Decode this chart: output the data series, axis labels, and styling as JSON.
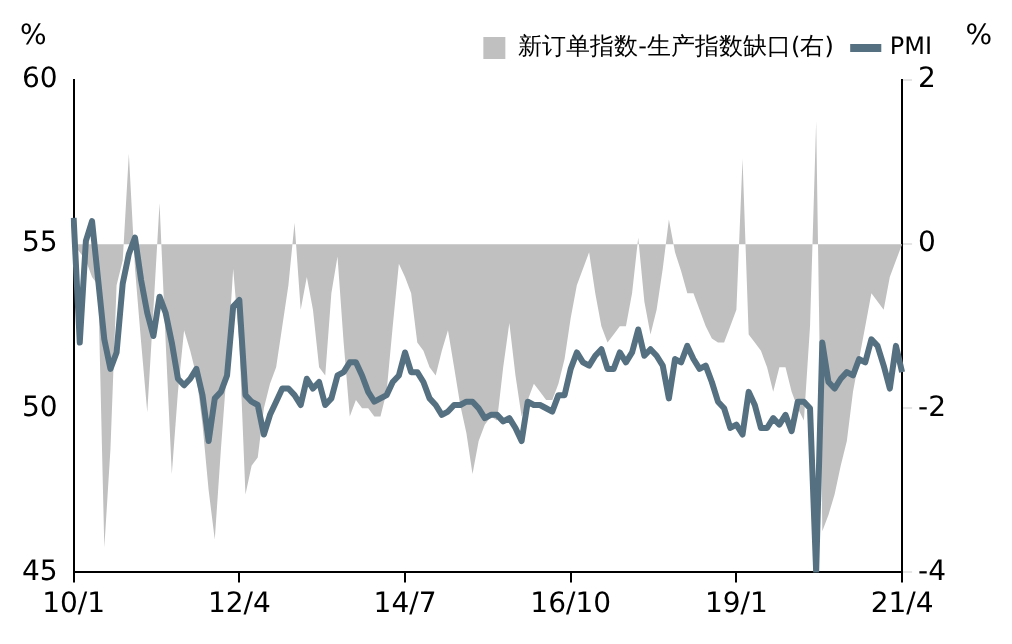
{
  "chart_data": {
    "type": "line",
    "ylabel": "%",
    "y2label": "%",
    "legend": "top",
    "categories": [
      "10/1",
      null,
      null,
      null,
      null,
      null,
      null,
      null,
      null,
      null,
      null,
      null,
      null,
      null,
      null,
      null,
      null,
      null,
      null,
      null,
      null,
      null,
      null,
      null,
      null,
      null,
      null,
      "12/4",
      null,
      null,
      null,
      null,
      null,
      null,
      null,
      null,
      null,
      null,
      null,
      null,
      null,
      null,
      null,
      null,
      null,
      null,
      null,
      null,
      null,
      null,
      null,
      null,
      null,
      null,
      "14/7",
      null,
      null,
      null,
      null,
      null,
      null,
      null,
      null,
      null,
      null,
      null,
      null,
      null,
      null,
      null,
      null,
      null,
      null,
      null,
      null,
      null,
      null,
      null,
      null,
      null,
      null,
      "16/10",
      null,
      null,
      null,
      null,
      null,
      null,
      null,
      null,
      null,
      null,
      null,
      null,
      null,
      null,
      null,
      null,
      null,
      null,
      null,
      null,
      null,
      null,
      null,
      null,
      null,
      null,
      "19/1",
      null,
      null,
      null,
      null,
      null,
      null,
      null,
      null,
      null,
      null,
      null,
      null,
      null,
      null,
      null,
      null,
      null,
      null,
      null,
      null,
      null,
      null,
      null,
      null,
      null,
      null,
      "21/4"
    ],
    "series": [
      {
        "name": "新订单指数-生产指数缺口(右)",
        "type": "area",
        "axis": "y2",
        "color": "#c0c0c0",
        "values": [
          0,
          -0.1,
          -0.2,
          -0.4,
          -0.5,
          -3.7,
          -2.5,
          -0.5,
          -0.2,
          1.1,
          -0.3,
          -1.2,
          -2.05,
          -0.8,
          0.5,
          -1.2,
          -2.8,
          -1.8,
          -1.05,
          -1.3,
          -1.6,
          -2.2,
          -3.0,
          -3.6,
          -2.5,
          -1.5,
          -0.3,
          -1.2,
          -3.05,
          -2.7,
          -2.6,
          -2.0,
          -1.7,
          -1.5,
          -1.0,
          -0.5,
          0.26,
          -0.8,
          -0.4,
          -0.8,
          -1.5,
          -1.6,
          -0.6,
          -0.15,
          -1.2,
          -2.1,
          -1.9,
          -2.0,
          -2.0,
          -2.1,
          -2.1,
          -1.8,
          -1.0,
          -0.24,
          -0.4,
          -0.6,
          -1.2,
          -1.3,
          -1.5,
          -1.6,
          -1.3,
          -1.05,
          -1.5,
          -1.96,
          -2.3,
          -2.8,
          -2.4,
          -2.2,
          -2.1,
          -2.15,
          -1.5,
          -0.96,
          -1.6,
          -2.1,
          -1.9,
          -1.7,
          -1.8,
          -1.9,
          -1.9,
          -1.7,
          -1.4,
          -0.9,
          -0.5,
          -0.3,
          -0.1,
          -0.6,
          -1.0,
          -1.2,
          -1.1,
          -1.0,
          -1.0,
          -0.6,
          0.08,
          -0.7,
          -1.1,
          -0.8,
          -0.3,
          0.3,
          -0.1,
          -0.33,
          -0.6,
          -0.6,
          -0.8,
          -1.0,
          -1.15,
          -1.2,
          -1.2,
          -1.0,
          -0.8,
          1.04,
          -1.1,
          -1.2,
          -1.3,
          -1.5,
          -1.8,
          -1.5,
          -1.5,
          -1.8,
          -2.0,
          -2.15,
          -1.0,
          1.5,
          -3.5,
          -3.3,
          -3.05,
          -2.7,
          -2.4,
          -1.8,
          -1.4,
          -1.0,
          -0.6,
          -0.7,
          -0.8,
          -0.4,
          -0.2,
          0
        ]
      },
      {
        "name": "PMI",
        "type": "line",
        "axis": "y",
        "color": "#557080",
        "values": [
          55.8,
          52.0,
          55.1,
          55.7,
          53.9,
          52.1,
          51.2,
          51.7,
          53.8,
          54.7,
          55.2,
          53.9,
          52.9,
          52.2,
          53.4,
          52.9,
          52.0,
          50.9,
          50.7,
          50.9,
          51.2,
          50.4,
          49.0,
          50.3,
          50.5,
          51.0,
          53.1,
          53.3,
          50.4,
          50.2,
          50.1,
          49.2,
          49.8,
          50.2,
          50.6,
          50.6,
          50.4,
          50.1,
          50.9,
          50.6,
          50.8,
          50.1,
          50.3,
          51.0,
          51.1,
          51.4,
          51.4,
          51.0,
          50.5,
          50.2,
          50.3,
          50.4,
          50.8,
          51.0,
          51.7,
          51.1,
          51.1,
          50.8,
          50.3,
          50.1,
          49.8,
          49.9,
          50.1,
          50.1,
          50.2,
          50.2,
          50.0,
          49.7,
          49.8,
          49.8,
          49.6,
          49.7,
          49.4,
          49.0,
          50.2,
          50.1,
          50.1,
          50.0,
          49.9,
          50.4,
          50.4,
          51.2,
          51.7,
          51.4,
          51.3,
          51.6,
          51.8,
          51.2,
          51.2,
          51.7,
          51.4,
          51.7,
          52.4,
          51.6,
          51.8,
          51.6,
          51.3,
          50.3,
          51.5,
          51.4,
          51.9,
          51.5,
          51.2,
          51.3,
          50.8,
          50.2,
          50.0,
          49.4,
          49.5,
          49.2,
          50.5,
          50.1,
          49.4,
          49.4,
          49.7,
          49.5,
          49.8,
          49.3,
          50.2,
          50.2,
          50.0,
          45,
          52.0,
          50.8,
          50.6,
          50.9,
          51.1,
          51.0,
          51.5,
          51.4,
          52.1,
          51.9,
          51.3,
          50.6,
          51.9,
          51.1
        ]
      }
    ],
    "ylim": [
      45,
      60
    ],
    "yticks": [
      45,
      50,
      55,
      60
    ],
    "y2lim": [
      -4,
      2
    ],
    "y2ticks": [
      -4,
      -2,
      0,
      2
    ],
    "grid": false,
    "marker": "none",
    "line_style": "solid"
  }
}
